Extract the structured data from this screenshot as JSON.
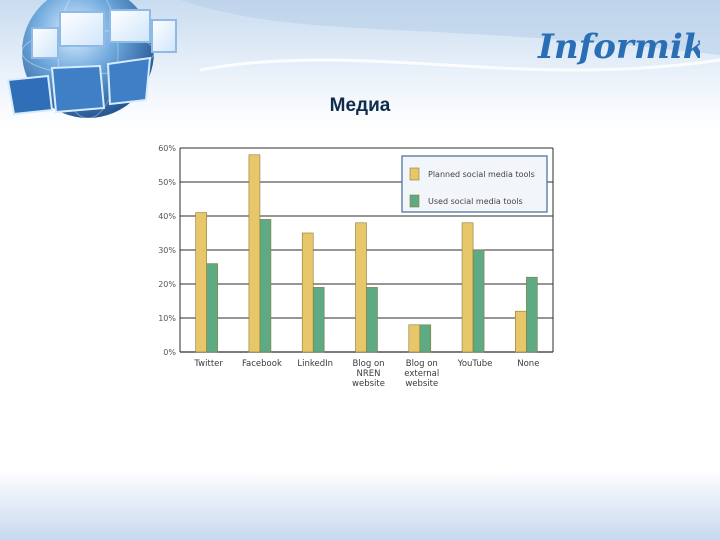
{
  "slide": {
    "title": "Медиа",
    "logo_text": "Informika"
  },
  "colors": {
    "planned": "#E8C76A",
    "used": "#5DAA84",
    "bar_edge": "#8A7A3A",
    "grid": "#2E2E2E",
    "legend_border": "#5A7FA8",
    "title": "#0F2C4C"
  },
  "chart_data": {
    "type": "bar",
    "categories": [
      [
        "Twitter"
      ],
      [
        "Facebook"
      ],
      [
        "LinkedIn"
      ],
      [
        "Blog on",
        "NREN",
        "website"
      ],
      [
        "Blog on",
        "external",
        "website"
      ],
      [
        "YouTube"
      ],
      [
        "None"
      ]
    ],
    "series": [
      {
        "name": "Planned social media tools",
        "values": [
          41,
          58,
          35,
          38,
          8,
          38,
          12
        ]
      },
      {
        "name": "Used social media tools",
        "values": [
          26,
          39,
          19,
          19,
          8,
          30,
          22
        ]
      }
    ],
    "yticks": [
      "0%",
      "10%",
      "20%",
      "30%",
      "40%",
      "50%",
      "60%"
    ],
    "ylim": [
      0,
      60
    ],
    "grid": true,
    "legend_position": "top-right"
  }
}
